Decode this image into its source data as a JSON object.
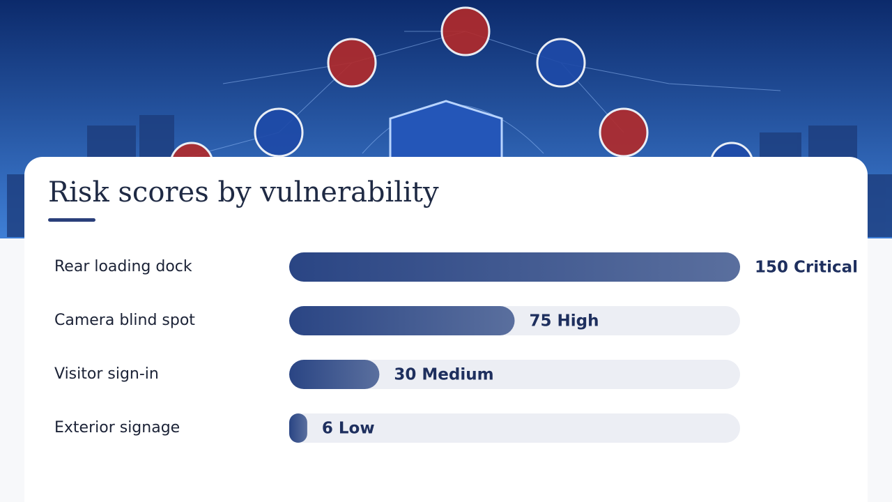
{
  "chart_data": {
    "type": "bar",
    "orientation": "horizontal",
    "title": "Risk scores by vulnerability",
    "categories": [
      "Rear loading dock",
      "Camera blind spot",
      "Visitor sign-in",
      "Exterior signage"
    ],
    "values": [
      150,
      75,
      30,
      6
    ],
    "value_labels": [
      "150 Critical",
      "75 High",
      "30 Medium",
      "6 Low"
    ],
    "color": "#2f4a8a"
  }
}
